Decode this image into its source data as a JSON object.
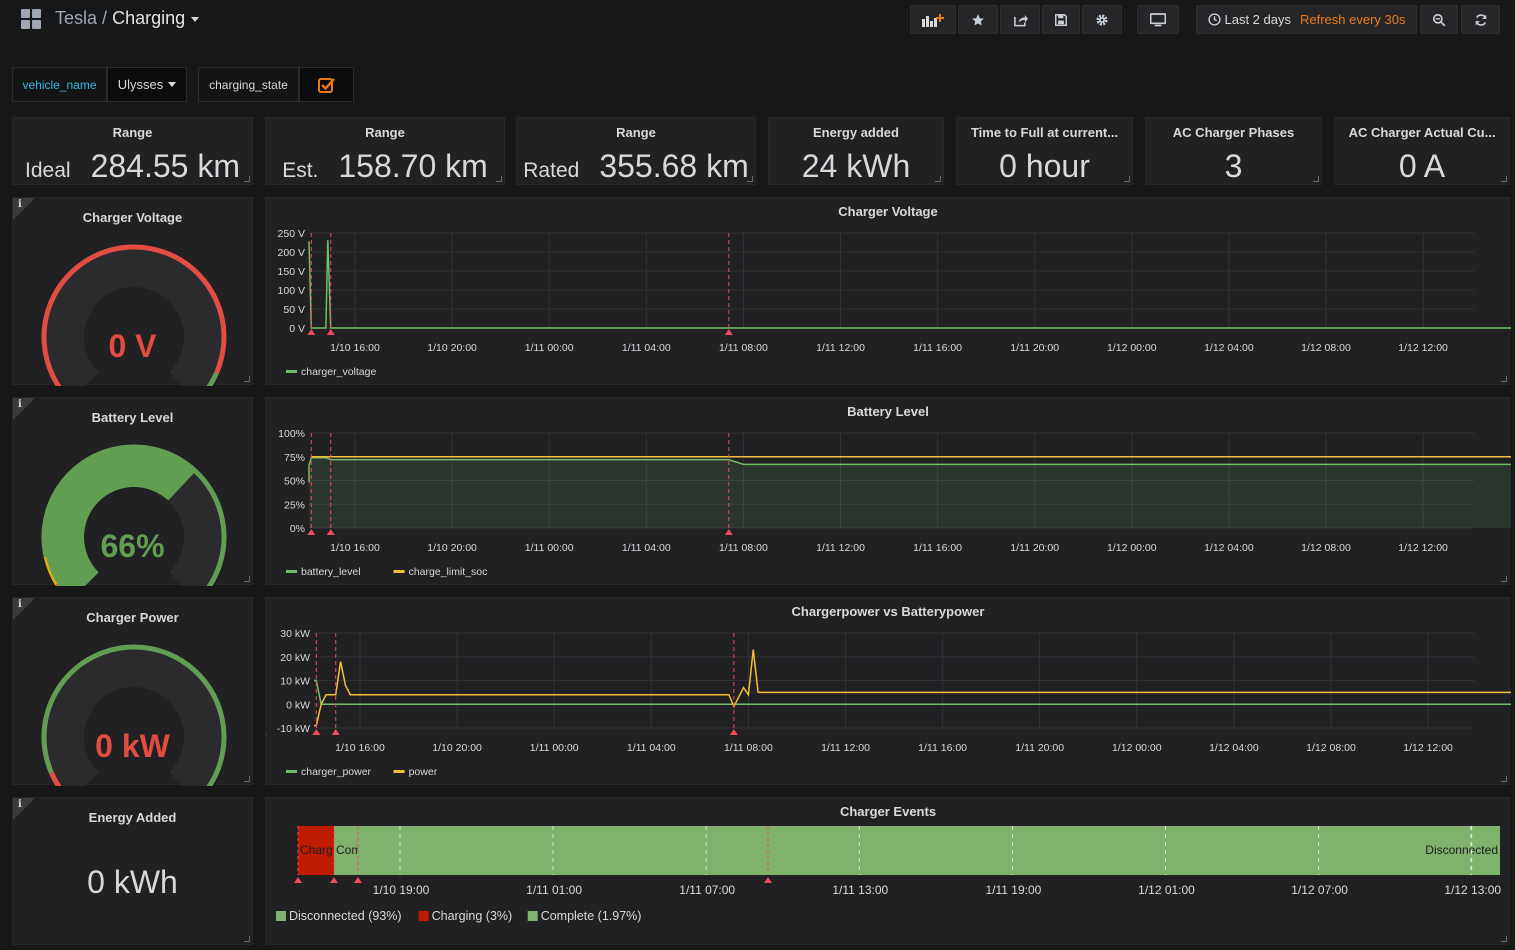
{
  "header": {
    "folder": "Tesla",
    "separator": "/",
    "dashboard": "Charging",
    "time_range": "Last 2 days",
    "refresh": "Refresh every 30s"
  },
  "toolbar_icons": [
    "add-panel-icon",
    "star-icon",
    "share-icon",
    "save-icon",
    "settings-icon",
    "tv-mode-icon",
    "clock-icon",
    "zoom-out-icon",
    "refresh-icon"
  ],
  "variables": {
    "vehicle_label": "vehicle_name",
    "vehicle_value": "Ulysses",
    "charging_label": "charging_state",
    "charging_checked": true
  },
  "stats": [
    {
      "title": "Range",
      "prefix": "Ideal",
      "value": "284.55 km"
    },
    {
      "title": "Range",
      "prefix": "Est.",
      "value": "158.70 km"
    },
    {
      "title": "Range",
      "prefix": "Rated",
      "value": "355.68 km"
    },
    {
      "title": "Energy added",
      "prefix": "",
      "value": "24 kWh"
    },
    {
      "title": "Time to Full at current...",
      "prefix": "",
      "value": "0 hour"
    },
    {
      "title": "AC Charger Phases",
      "prefix": "",
      "value": "3"
    },
    {
      "title": "AC Charger Actual Cu...",
      "prefix": "",
      "value": "0 A"
    }
  ],
  "gauges": [
    {
      "title": "Charger Voltage",
      "value": "0 V",
      "level": 0,
      "value_color": "#e24d42"
    },
    {
      "title": "Battery Level",
      "value": "66%",
      "level": 0.66,
      "value_color": "#629e51"
    },
    {
      "title": "Charger Power",
      "value": "0 kW",
      "level": 0,
      "value_color": "#e24d42"
    }
  ],
  "energy_panel": {
    "title": "Energy Added",
    "value": "0 kWh"
  },
  "colors": {
    "green": "#629e51",
    "yellow": "#e5ac0e",
    "red": "#e24d42",
    "panel": "#212124",
    "text": "#d8d9da",
    "line_green": "#73bf69",
    "line_orange": "#f2c037",
    "annotation": "#f2495c"
  },
  "chart_data": [
    {
      "type": "line",
      "title": "Charger Voltage",
      "x_ticks": [
        "1/10 16:00",
        "1/10 20:00",
        "1/11 00:00",
        "1/11 04:00",
        "1/11 08:00",
        "1/11 12:00",
        "1/11 16:00",
        "1/11 20:00",
        "1/12 00:00",
        "1/12 04:00",
        "1/12 08:00",
        "1/12 12:00"
      ],
      "y_ticks": [
        "250 V",
        "200 V",
        "150 V",
        "100 V",
        "50 V",
        "0 V"
      ],
      "ylim": [
        0,
        250
      ],
      "series": [
        {
          "name": "charger_voltage",
          "color": "#73bf69",
          "points": [
            [
              -1.8,
              228
            ],
            [
              -0.5,
              228
            ],
            [
              -0.45,
              0
            ],
            [
              -0.3,
              0
            ],
            [
              -0.28,
              231
            ],
            [
              -0.25,
              0
            ],
            [
              14.3,
              0
            ]
          ]
        }
      ],
      "annotations": [
        -1.0,
        -0.45,
        -0.25,
        3.85
      ]
    },
    {
      "type": "line",
      "title": "Battery Level",
      "x_ticks": [
        "1/10 16:00",
        "1/10 20:00",
        "1/11 00:00",
        "1/11 04:00",
        "1/11 08:00",
        "1/11 12:00",
        "1/11 16:00",
        "1/11 20:00",
        "1/12 00:00",
        "1/12 04:00",
        "1/12 08:00",
        "1/12 12:00"
      ],
      "y_ticks": [
        "100%",
        "75%",
        "50%",
        "25%",
        "0%"
      ],
      "ylim": [
        0,
        100
      ],
      "series": [
        {
          "name": "battery_level",
          "color": "#73bf69",
          "points": [
            [
              -1.8,
              48
            ],
            [
              -1.2,
              55
            ],
            [
              -0.95,
              58
            ],
            [
              -0.9,
              66
            ],
            [
              -0.45,
              74
            ],
            [
              -0.3,
              74
            ],
            [
              -0.25,
              72
            ],
            [
              3.85,
              72
            ],
            [
              4.0,
              67
            ],
            [
              14.3,
              67
            ]
          ]
        },
        {
          "name": "charge_limit_soc",
          "color": "#f2c037",
          "points": [
            [
              -0.45,
              75
            ],
            [
              14.3,
              75
            ]
          ]
        }
      ],
      "annotations": [
        -1.0,
        -0.45,
        -0.25,
        3.85
      ]
    },
    {
      "type": "line",
      "title": "Chargerpower vs Batterypower",
      "x_ticks": [
        "1/10 16:00",
        "1/10 20:00",
        "1/11 00:00",
        "1/11 04:00",
        "1/11 08:00",
        "1/11 12:00",
        "1/11 16:00",
        "1/11 20:00",
        "1/12 00:00",
        "1/12 04:00",
        "1/12 08:00",
        "1/12 12:00"
      ],
      "y_ticks": [
        "30 kW",
        "20 kW",
        "10 kW",
        "0 kW",
        "-10 kW"
      ],
      "ylim": [
        -10,
        30
      ],
      "series": [
        {
          "name": "charger_power",
          "color": "#73bf69",
          "points": [
            [
              -1.0,
              10
            ],
            [
              -0.45,
              10
            ],
            [
              -0.4,
              0
            ],
            [
              14.3,
              0
            ]
          ]
        },
        {
          "name": "power",
          "color": "#f2c037",
          "points": [
            [
              -1.0,
              -9
            ],
            [
              -0.45,
              -9
            ],
            [
              -0.4,
              0
            ],
            [
              -0.35,
              4
            ],
            [
              -0.25,
              4
            ],
            [
              -0.2,
              18
            ],
            [
              -0.15,
              8
            ],
            [
              -0.1,
              4
            ],
            [
              3.8,
              4
            ],
            [
              3.85,
              -1
            ],
            [
              3.95,
              7
            ],
            [
              4.0,
              4
            ],
            [
              4.05,
              23
            ],
            [
              4.1,
              5
            ],
            [
              14.3,
              5
            ]
          ]
        }
      ],
      "annotations": [
        -1.0,
        -0.45,
        -0.25,
        3.85
      ]
    },
    {
      "type": "bar",
      "title": "Charger Events",
      "x_ticks": [
        "1/10 19:00",
        "1/11 01:00",
        "1/11 07:00",
        "1/11 13:00",
        "1/11 19:00",
        "1/12 01:00",
        "1/12 07:00",
        "1/12 13:00"
      ],
      "segments": [
        {
          "state": "Charg",
          "color": "#bf1b00",
          "label": "Charg"
        },
        {
          "state": "Com",
          "color": "#7eb26d",
          "label": "Com"
        },
        {
          "state": "Disconnected",
          "color": "#7eb26d",
          "label": "Disconnected"
        }
      ],
      "legend": [
        {
          "label": "Disconnected (93%)",
          "color": "#7eb26d"
        },
        {
          "label": "Charging (3%)",
          "color": "#bf1b00"
        },
        {
          "label": "Complete (1.97%)",
          "color": "#7eb26d"
        }
      ]
    }
  ]
}
